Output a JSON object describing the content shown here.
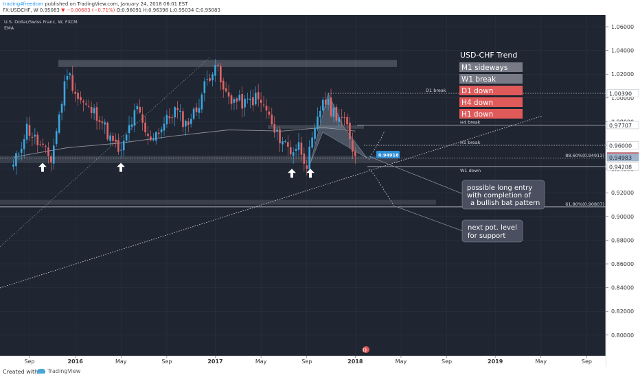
{
  "header": {
    "publisher": "trading4freedom",
    "published_text": "published on TradingView.com, January 24, 2018 06:01 EST",
    "symbol_prefix": "FX:USDCHF, W",
    "last": "0.95083",
    "change": "▼ −0.00683 (−0.71%)",
    "ohlc": "O:0.96091 H:0.96398 L:0.95034 C:0.95083"
  },
  "legend": {
    "instrument": "U.S. Dollar/Swiss Franc, W, FXCM",
    "indicator": "EMA"
  },
  "trend_box": {
    "title": "USD-CHF Trend",
    "items": [
      {
        "label": "M1 sideways",
        "color": "#787b86"
      },
      {
        "label": "W1 break",
        "color": "#787b86"
      },
      {
        "label": "D1 down",
        "color": "#e05a5a"
      },
      {
        "label": "H4 down",
        "color": "#e05a5a"
      },
      {
        "label": "H1 down",
        "color": "#e05a5a"
      }
    ]
  },
  "annotations": {
    "d1_break": "D1 break",
    "h4_break": "H4 break",
    "h1_break": "H1 break",
    "fib_886": "88.60%(0.94913)",
    "w1_down": "W1 down",
    "fib_618": "61.80%(0.90807)",
    "entry_price": "0.94918",
    "long_entry": [
      "possible long entry",
      "with completion of",
      "a bullish bat pattern"
    ],
    "next_support": [
      "next pot. level",
      "for support"
    ]
  },
  "price_labels": [
    {
      "text": "1.00390",
      "price": 1.0039,
      "bg": "#ffffff",
      "fg": "#1f232d"
    },
    {
      "text": "0.97707",
      "price": 0.97707,
      "bg": "#ffffff",
      "fg": "#1f232d"
    },
    {
      "text": "0.96000",
      "price": 0.96,
      "bg": "#ffffff",
      "fg": "#1f232d"
    },
    {
      "text": "0.95083",
      "price": 0.95083,
      "bg": "#e05a5a",
      "fg": "#ffffff"
    },
    {
      "text": "0.94983",
      "price": 0.94983,
      "bg": "#9eb4cc",
      "fg": "#1f232d"
    },
    {
      "text": "0.94208",
      "price": 0.94208,
      "bg": "#ffffff",
      "fg": "#1f232d"
    }
  ],
  "footer": {
    "created_with": "Created with",
    "brand": "TradingView"
  },
  "colors": {
    "background": "#1f2531",
    "up": "#3aa7e0",
    "down": "#e06666",
    "grid": "#2c3240"
  },
  "chart_data": {
    "type": "candlestick",
    "timeframe": "weekly",
    "y_axis": {
      "ticks": [
        "1.06000",
        "1.04000",
        "1.02000",
        "1.00000",
        "0.98000",
        "0.96000",
        "0.94000",
        "0.92000",
        "0.90000",
        "0.88000",
        "0.86000",
        "0.84000",
        "0.82000",
        "0.80000"
      ],
      "range": [
        0.798,
        1.072
      ]
    },
    "x_axis": {
      "ticks": [
        {
          "label": "Sep",
          "week": 6
        },
        {
          "label": "2016",
          "week": 23
        },
        {
          "label": "May",
          "week": 40
        },
        {
          "label": "Sep",
          "week": 57
        },
        {
          "label": "2017",
          "week": 75
        },
        {
          "label": "May",
          "week": 92
        },
        {
          "label": "Sep",
          "week": 109
        },
        {
          "label": "2018",
          "week": 127
        },
        {
          "label": "May",
          "week": 144
        },
        {
          "label": "Sep",
          "week": 161
        },
        {
          "label": "2019",
          "week": 179
        },
        {
          "label": "May",
          "week": 196
        },
        {
          "label": "Sep",
          "week": 213
        }
      ]
    },
    "horizontal_levels": [
      {
        "label": "D1 break",
        "price": 1.0039
      },
      {
        "label": "H4 break",
        "price": 0.97707
      },
      {
        "label": "H1 break",
        "price": 0.96
      },
      {
        "label": "88.60%(0.94913)",
        "price": 0.94913
      },
      {
        "label": "W1 down",
        "price": 0.94208
      },
      {
        "label": "61.80%(0.90807)",
        "price": 0.90807
      }
    ],
    "anchors": [
      {
        "week": 0,
        "price": 0.942
      },
      {
        "week": 5,
        "price": 0.975
      },
      {
        "week": 9,
        "price": 0.962
      },
      {
        "week": 14,
        "price": 0.948
      },
      {
        "week": 17,
        "price": 0.985
      },
      {
        "week": 20,
        "price": 1.023
      },
      {
        "week": 24,
        "price": 1.0
      },
      {
        "week": 28,
        "price": 0.99
      },
      {
        "week": 32,
        "price": 0.985
      },
      {
        "week": 36,
        "price": 0.965
      },
      {
        "week": 40,
        "price": 0.953
      },
      {
        "week": 43,
        "price": 0.975
      },
      {
        "week": 46,
        "price": 0.99
      },
      {
        "week": 50,
        "price": 0.965
      },
      {
        "week": 55,
        "price": 0.975
      },
      {
        "week": 60,
        "price": 0.99
      },
      {
        "week": 64,
        "price": 0.978
      },
      {
        "week": 68,
        "price": 0.99
      },
      {
        "week": 71,
        "price": 1.01
      },
      {
        "week": 75,
        "price": 1.03
      },
      {
        "week": 78,
        "price": 1.005
      },
      {
        "week": 82,
        "price": 0.998
      },
      {
        "week": 86,
        "price": 0.995
      },
      {
        "week": 90,
        "price": 1.0
      },
      {
        "week": 94,
        "price": 0.99
      },
      {
        "week": 97,
        "price": 0.97
      },
      {
        "week": 100,
        "price": 0.965
      },
      {
        "week": 103,
        "price": 0.955
      },
      {
        "week": 106,
        "price": 0.96
      },
      {
        "week": 109,
        "price": 0.945
      },
      {
        "week": 112,
        "price": 0.97
      },
      {
        "week": 115,
        "price": 1.0
      },
      {
        "week": 118,
        "price": 0.99
      },
      {
        "week": 121,
        "price": 0.985
      },
      {
        "week": 124,
        "price": 0.975
      },
      {
        "week": 127,
        "price": 0.95083
      }
    ],
    "ema": [
      {
        "week": 0,
        "price": 0.95
      },
      {
        "week": 20,
        "price": 0.958
      },
      {
        "week": 40,
        "price": 0.962
      },
      {
        "week": 60,
        "price": 0.968
      },
      {
        "week": 80,
        "price": 0.973
      },
      {
        "week": 100,
        "price": 0.972
      },
      {
        "week": 115,
        "price": 0.975
      },
      {
        "week": 127,
        "price": 0.972
      }
    ]
  }
}
